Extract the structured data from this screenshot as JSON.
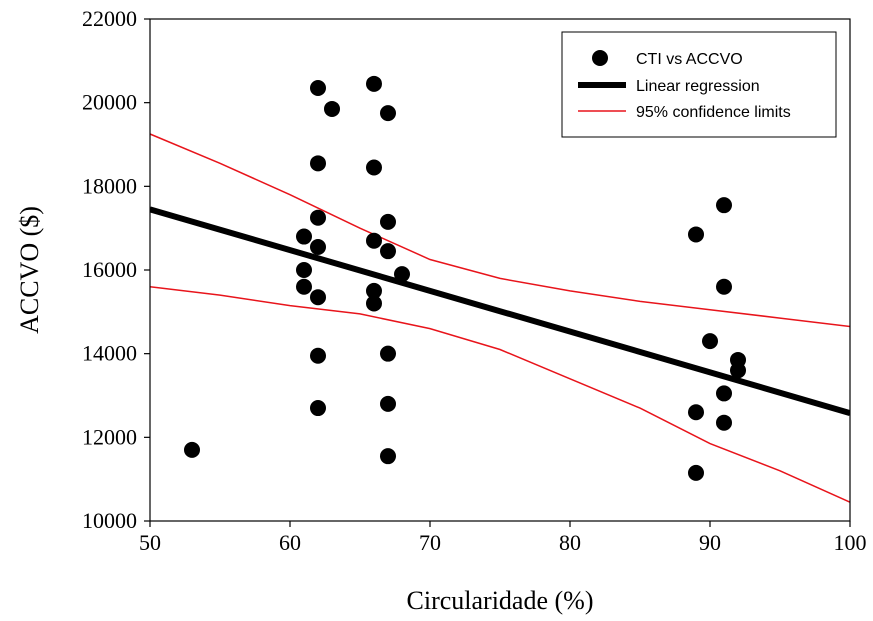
{
  "chart_data": {
    "type": "scatter",
    "xlabel": "Circularidade (%)",
    "ylabel": "ACCVO ($)",
    "xlim": [
      50,
      100
    ],
    "ylim": [
      10000,
      22000
    ],
    "xticks": [
      50,
      60,
      70,
      80,
      90,
      100
    ],
    "yticks": [
      10000,
      12000,
      14000,
      16000,
      18000,
      20000,
      22000
    ],
    "grid": false,
    "legend_position": "top-right",
    "series": [
      {
        "name": "CTI vs ACCVO",
        "kind": "points",
        "color": "#000000",
        "points": [
          {
            "x": 53,
            "y": 11700
          },
          {
            "x": 61,
            "y": 16800
          },
          {
            "x": 61,
            "y": 16000
          },
          {
            "x": 61,
            "y": 15600
          },
          {
            "x": 62,
            "y": 20350
          },
          {
            "x": 62,
            "y": 18550
          },
          {
            "x": 62,
            "y": 17250
          },
          {
            "x": 62,
            "y": 16550
          },
          {
            "x": 62,
            "y": 15350
          },
          {
            "x": 62,
            "y": 13950
          },
          {
            "x": 62,
            "y": 12700
          },
          {
            "x": 63,
            "y": 19850
          },
          {
            "x": 66,
            "y": 20450
          },
          {
            "x": 66,
            "y": 18450
          },
          {
            "x": 66,
            "y": 16700
          },
          {
            "x": 66,
            "y": 15500
          },
          {
            "x": 66,
            "y": 15200
          },
          {
            "x": 67,
            "y": 19750
          },
          {
            "x": 67,
            "y": 17150
          },
          {
            "x": 67,
            "y": 16450
          },
          {
            "x": 67,
            "y": 14000
          },
          {
            "x": 67,
            "y": 12800
          },
          {
            "x": 67,
            "y": 11550
          },
          {
            "x": 68,
            "y": 15900
          },
          {
            "x": 89,
            "y": 16850
          },
          {
            "x": 89,
            "y": 12600
          },
          {
            "x": 89,
            "y": 11150
          },
          {
            "x": 90,
            "y": 14300
          },
          {
            "x": 91,
            "y": 17550
          },
          {
            "x": 91,
            "y": 15600
          },
          {
            "x": 91,
            "y": 13050
          },
          {
            "x": 91,
            "y": 12350
          },
          {
            "x": 92,
            "y": 13850
          },
          {
            "x": 92,
            "y": 13600
          }
        ]
      },
      {
        "name": "Linear regression",
        "kind": "line",
        "color": "#000000",
        "x": [
          50,
          100
        ],
        "y": [
          17450,
          12580
        ]
      },
      {
        "name": "95% confidence limits",
        "kind": "band",
        "color": "#e8141b",
        "x": [
          50,
          55,
          60,
          65,
          70,
          75,
          80,
          85,
          90,
          95,
          100
        ],
        "upper": [
          19250,
          18550,
          17800,
          17000,
          16250,
          15800,
          15500,
          15250,
          15050,
          14850,
          14650
        ],
        "lower": [
          15600,
          15400,
          15150,
          14950,
          14600,
          14100,
          13400,
          12700,
          11850,
          11200,
          10450
        ]
      }
    ]
  }
}
